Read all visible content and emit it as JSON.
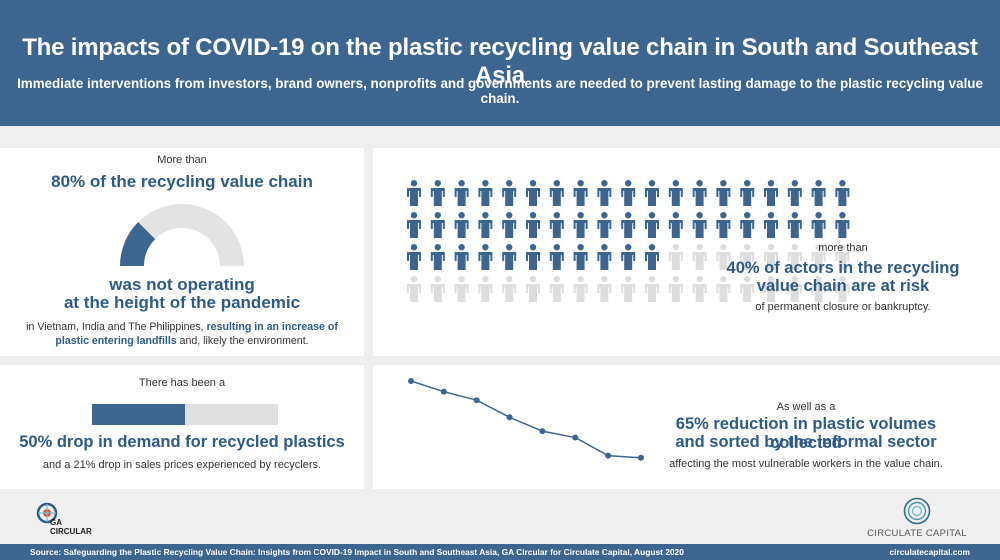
{
  "colors": {
    "brand": "#3c6690",
    "headline": "#2c5b8a",
    "inactive": "#dddddd",
    "background": "#efefef"
  },
  "header": {
    "title": "The impacts of COVID-19 on the plastic recycling value chain in South and Southeast Asia",
    "subtitle": "Immediate interventions from investors, brand owners, nonprofits and governments are needed to prevent lasting damage to the plastic recycling value chain."
  },
  "stat_not_operating": {
    "pre": "More than",
    "headline": "80% of the recycling value chain",
    "line1": "was not operating",
    "line2": "at the height of the pandemic",
    "note_lead": "in Vietnam, India and The Philippines, ",
    "note_highlight": "resulting in an increase of plastic entering landfills",
    "note_tail": " and, likely the environment.",
    "gauge_percent": 80
  },
  "stat_at_risk": {
    "pre": "more than",
    "headline_line1": "40% of actors in the recycling",
    "headline_line2": "value chain are at risk",
    "post": "of permanent closure or bankruptcy.",
    "people_total": 88,
    "people_highlighted": 49,
    "people_per_row": 19
  },
  "stat_demand_drop": {
    "pre": "There has been a",
    "headline": "50% drop in demand for recycled plastics",
    "post": "and a 21% drop in sales prices experienced by recyclers.",
    "bar_percent": 50
  },
  "stat_volume_reduction": {
    "pre": "As well as a",
    "headline_line1": "65% reduction in plastic volumes collected",
    "headline_line2": "and sorted by the informal sector",
    "post": "affecting the most vulnerable workers in the value chain.",
    "trend_values": [
      100,
      90,
      82,
      66,
      53,
      47,
      30,
      28
    ]
  },
  "logos": {
    "left_line1": "GA",
    "left_line2": "CIRCULAR",
    "right": "CIRCULATE CAPITAL"
  },
  "footer": {
    "source": "Source: Safeguarding the Plastic Recycling Value Chain: Insights from COVID-19 Impact in South and Southeast Asia, GA Circular for Circulate Capital, August 2020",
    "url": "circulatecapital.com"
  }
}
